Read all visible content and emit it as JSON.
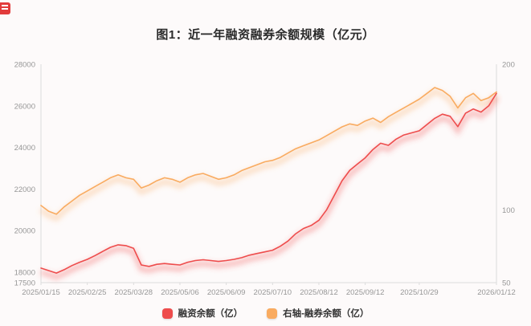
{
  "chart_data": {
    "type": "line",
    "title": "图1：近一年融资融券余额规模（亿元）",
    "left_axis": {
      "min": 17500,
      "max": 28000,
      "ticks": [
        28000,
        26000,
        24000,
        22000,
        20000,
        18000,
        17500
      ]
    },
    "right_axis": {
      "min": 50,
      "max": 200,
      "ticks": [
        200,
        100,
        50
      ]
    },
    "x_ticks": [
      {
        "label": "2025/01/15",
        "i": 0
      },
      {
        "label": "2025/02/25",
        "i": 6
      },
      {
        "label": "2025/03/28",
        "i": 12
      },
      {
        "label": "2025/05/06",
        "i": 18
      },
      {
        "label": "2025/06/09",
        "i": 24
      },
      {
        "label": "2025/07/10",
        "i": 30
      },
      {
        "label": "2025/08/12",
        "i": 36
      },
      {
        "label": "2025/09/12",
        "i": 42
      },
      {
        "label": "2025/10/29",
        "i": 49
      },
      {
        "label": "2026/01/12",
        "i": 59
      }
    ],
    "grid": false,
    "legend_position": "bottom",
    "series": [
      {
        "name": "右轴-融券余额（亿）",
        "axis": "right",
        "color": "#f9ab60",
        "values": [
          103,
          99,
          97,
          102,
          106,
          110,
          113,
          116,
          119,
          122,
          124,
          122,
          121,
          115,
          117,
          120,
          122,
          121,
          119,
          122,
          124,
          125,
          123,
          121,
          122,
          124,
          127,
          129,
          131,
          133,
          134,
          136,
          139,
          142,
          144,
          146,
          148,
          151,
          154,
          157,
          159,
          158,
          161,
          163,
          160,
          164,
          167,
          170,
          173,
          176,
          180,
          184,
          182,
          178,
          170,
          177,
          180,
          175,
          177,
          181
        ]
      },
      {
        "name": "融资余额（亿）",
        "axis": "left",
        "color": "#ee4c4c",
        "values": [
          18200,
          18080,
          17960,
          18120,
          18320,
          18480,
          18620,
          18800,
          19000,
          19200,
          19320,
          19280,
          19150,
          18350,
          18280,
          18380,
          18420,
          18380,
          18350,
          18480,
          18560,
          18600,
          18560,
          18520,
          18560,
          18620,
          18700,
          18820,
          18900,
          18980,
          19060,
          19250,
          19500,
          19850,
          20100,
          20250,
          20500,
          21000,
          21700,
          22400,
          22900,
          23200,
          23500,
          23900,
          24200,
          24100,
          24400,
          24600,
          24700,
          24800,
          25100,
          25400,
          25600,
          25500,
          25000,
          25650,
          25850,
          25700,
          26000,
          26600
        ]
      }
    ],
    "legend": [
      {
        "label": "融资余额（亿）",
        "color": "#ee4c4c"
      },
      {
        "label": "右轴-融券余额（亿）",
        "color": "#f9ab60"
      }
    ]
  }
}
